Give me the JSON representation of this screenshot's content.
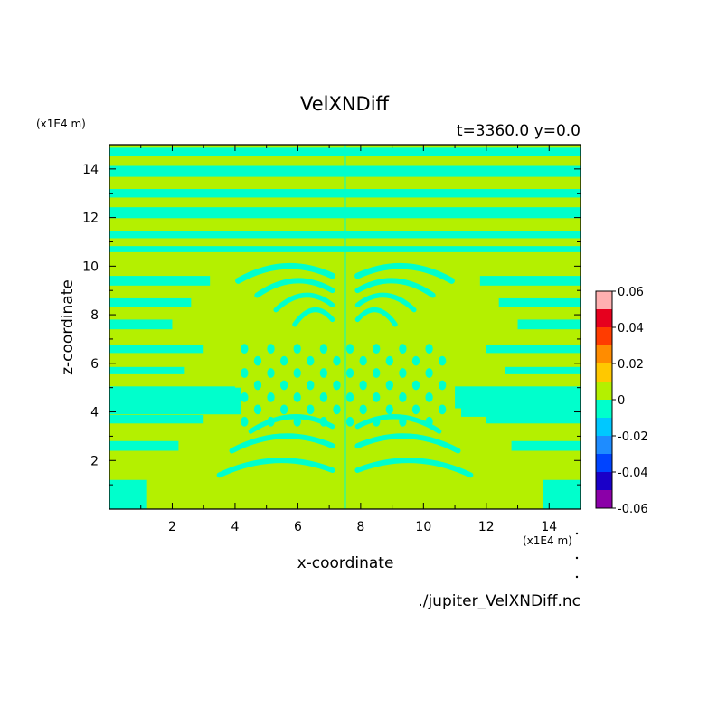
{
  "chart_data": {
    "type": "heatmap",
    "title": "VelXNDiff",
    "subtitle": "t=3360.0 y=0.0",
    "xlabel": "x-coordinate",
    "ylabel": "z-coordinate",
    "x_unit": "(x1E4 m)",
    "y_unit": "(x1E4 m)",
    "xlim": [
      0,
      15
    ],
    "ylim": [
      0,
      15
    ],
    "x_ticks": [
      2,
      4,
      6,
      8,
      10,
      12,
      14
    ],
    "y_ticks": [
      2,
      4,
      6,
      8,
      10,
      12,
      14
    ],
    "x_tick_labels": [
      "2",
      "4",
      "6",
      "8",
      "10",
      "12",
      "14"
    ],
    "y_tick_labels": [
      "2",
      "4",
      "6",
      "8",
      "10",
      "12",
      "14"
    ],
    "colorbar": {
      "levels": [
        -0.06,
        -0.05,
        -0.04,
        -0.03,
        -0.02,
        -0.01,
        0,
        0.01,
        0.02,
        0.03,
        0.04,
        0.05,
        0.06
      ],
      "tick_values": [
        -0.06,
        -0.04,
        -0.02,
        0,
        0.02,
        0.04,
        0.06
      ],
      "tick_labels": [
        "-0.06",
        "-0.04",
        "-0.02",
        "0",
        "0.02",
        "0.04",
        "0.06"
      ],
      "colors": [
        "#8b00a8",
        "#1a00c8",
        "#0044ff",
        "#1e8cff",
        "#00c8ff",
        "#00ffcc",
        "#b4f000",
        "#ffc800",
        "#ff8c00",
        "#ff3c00",
        "#e6001e",
        "#ffb0b0"
      ]
    },
    "dominant_values": [
      -0.01,
      0.01
    ],
    "colors": {
      "negative_band": "#00ffcc",
      "positive_band": "#b4f000"
    },
    "grid": false,
    "legend": "right colorbar"
  },
  "footer": {
    "source_file": "./jupiter_VelXNDiff.nc"
  }
}
